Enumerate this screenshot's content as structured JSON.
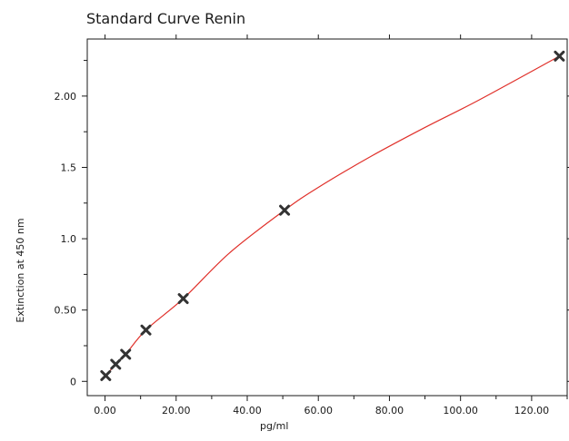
{
  "chart_data": {
    "type": "scatter",
    "title": "Standard Curve Renin",
    "xlabel": "pg/ml",
    "ylabel": "Extinction at 450 nm",
    "xlim": [
      -5,
      130
    ],
    "ylim": [
      -0.1,
      2.4
    ],
    "x_ticks": [
      0,
      20,
      40,
      60,
      80,
      100,
      120
    ],
    "x_tick_labels": [
      "0.00",
      "20.00",
      "40.00",
      "60.00",
      "80.00",
      "100.00",
      "120.00"
    ],
    "x_minor_ticks": [
      10,
      30,
      50,
      70,
      90,
      110,
      130
    ],
    "y_ticks": [
      0,
      0.5,
      1.0,
      1.5,
      2.0
    ],
    "y_tick_labels": [
      "0",
      "0.50",
      "1.0",
      "1.5",
      "2.00"
    ],
    "y_minor_ticks": [
      0.25,
      0.75,
      1.25,
      1.75,
      2.25
    ],
    "grid": false,
    "series": [
      {
        "type": "scatter",
        "marker": "x",
        "color": "#333333",
        "x": [
          0.2,
          3.0,
          5.8,
          11.5,
          22.0,
          50.5,
          127.8
        ],
        "y": [
          0.04,
          0.12,
          0.19,
          0.36,
          0.58,
          1.2,
          2.28
        ]
      },
      {
        "type": "line",
        "color": "#e0302a",
        "x": [
          0.2,
          3.0,
          5.8,
          11.5,
          22.0,
          35.0,
          50.5,
          60.0,
          75.0,
          90.0,
          105.0,
          127.8
        ],
        "y": [
          0.04,
          0.12,
          0.19,
          0.36,
          0.58,
          0.9,
          1.2,
          1.36,
          1.58,
          1.78,
          1.97,
          2.28
        ]
      }
    ]
  }
}
